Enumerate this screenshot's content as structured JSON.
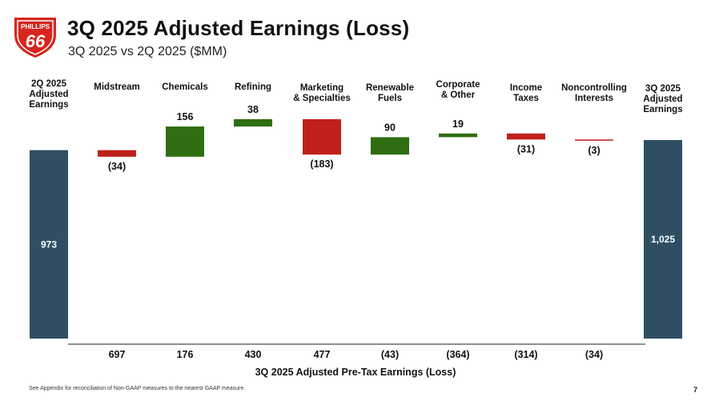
{
  "header": {
    "logo_text_top": "PHILLIPS",
    "logo_text_main": "66",
    "title": "3Q 2025 Adjusted Earnings (Loss)",
    "subtitle": "3Q 2025 vs 2Q 2025 ($MM)"
  },
  "colors": {
    "start_end": "#2e4f63",
    "increase": "#2f6e12",
    "decrease": "#c0201b",
    "logo_red": "#d6261f"
  },
  "chart_data": {
    "type": "bar",
    "categories": [
      "2Q 2025 Adjusted Earnings",
      "Midstream",
      "Chemicals",
      "Refining",
      "Marketing & Specialties",
      "Renewable Fuels",
      "Corporate & Other",
      "Income Taxes",
      "Noncontrolling Interests",
      "3Q 2025 Adjusted Earnings"
    ],
    "category_label_lines": [
      [
        "2Q 2025",
        "Adjusted",
        "Earnings"
      ],
      [
        "Midstream"
      ],
      [
        "Chemicals"
      ],
      [
        "Refining"
      ],
      [
        "Marketing",
        "& Specialties"
      ],
      [
        "Renewable",
        "Fuels"
      ],
      [
        "Corporate",
        "& Other"
      ],
      [
        "Income",
        "Taxes"
      ],
      [
        "Noncontrolling",
        "Interests"
      ],
      [
        "3Q 2025",
        "Adjusted",
        "Earnings"
      ]
    ],
    "values": [
      973,
      -34,
      156,
      38,
      -183,
      90,
      19,
      -31,
      -3,
      1025
    ],
    "value_labels": [
      "973",
      "(34)",
      "156",
      "38",
      "(183)",
      "90",
      "19",
      "(31)",
      "(3)",
      "1,025"
    ],
    "bar_kinds": [
      "total",
      "delta",
      "delta",
      "delta",
      "delta",
      "delta",
      "delta",
      "delta",
      "delta",
      "total"
    ],
    "pretax_label": "3Q 2025 Adjusted Pre-Tax Earnings (Loss)",
    "pretax_values": [
      "697",
      "176",
      "430",
      "477",
      "(43)",
      "(364)",
      "(314)",
      "(34)"
    ],
    "ylim": [
      0,
      1025
    ]
  },
  "footer": {
    "footnote": "See Appendix for reconciliation of Non-GAAP measures to the nearest GAAP measure.",
    "page_number": "7"
  }
}
